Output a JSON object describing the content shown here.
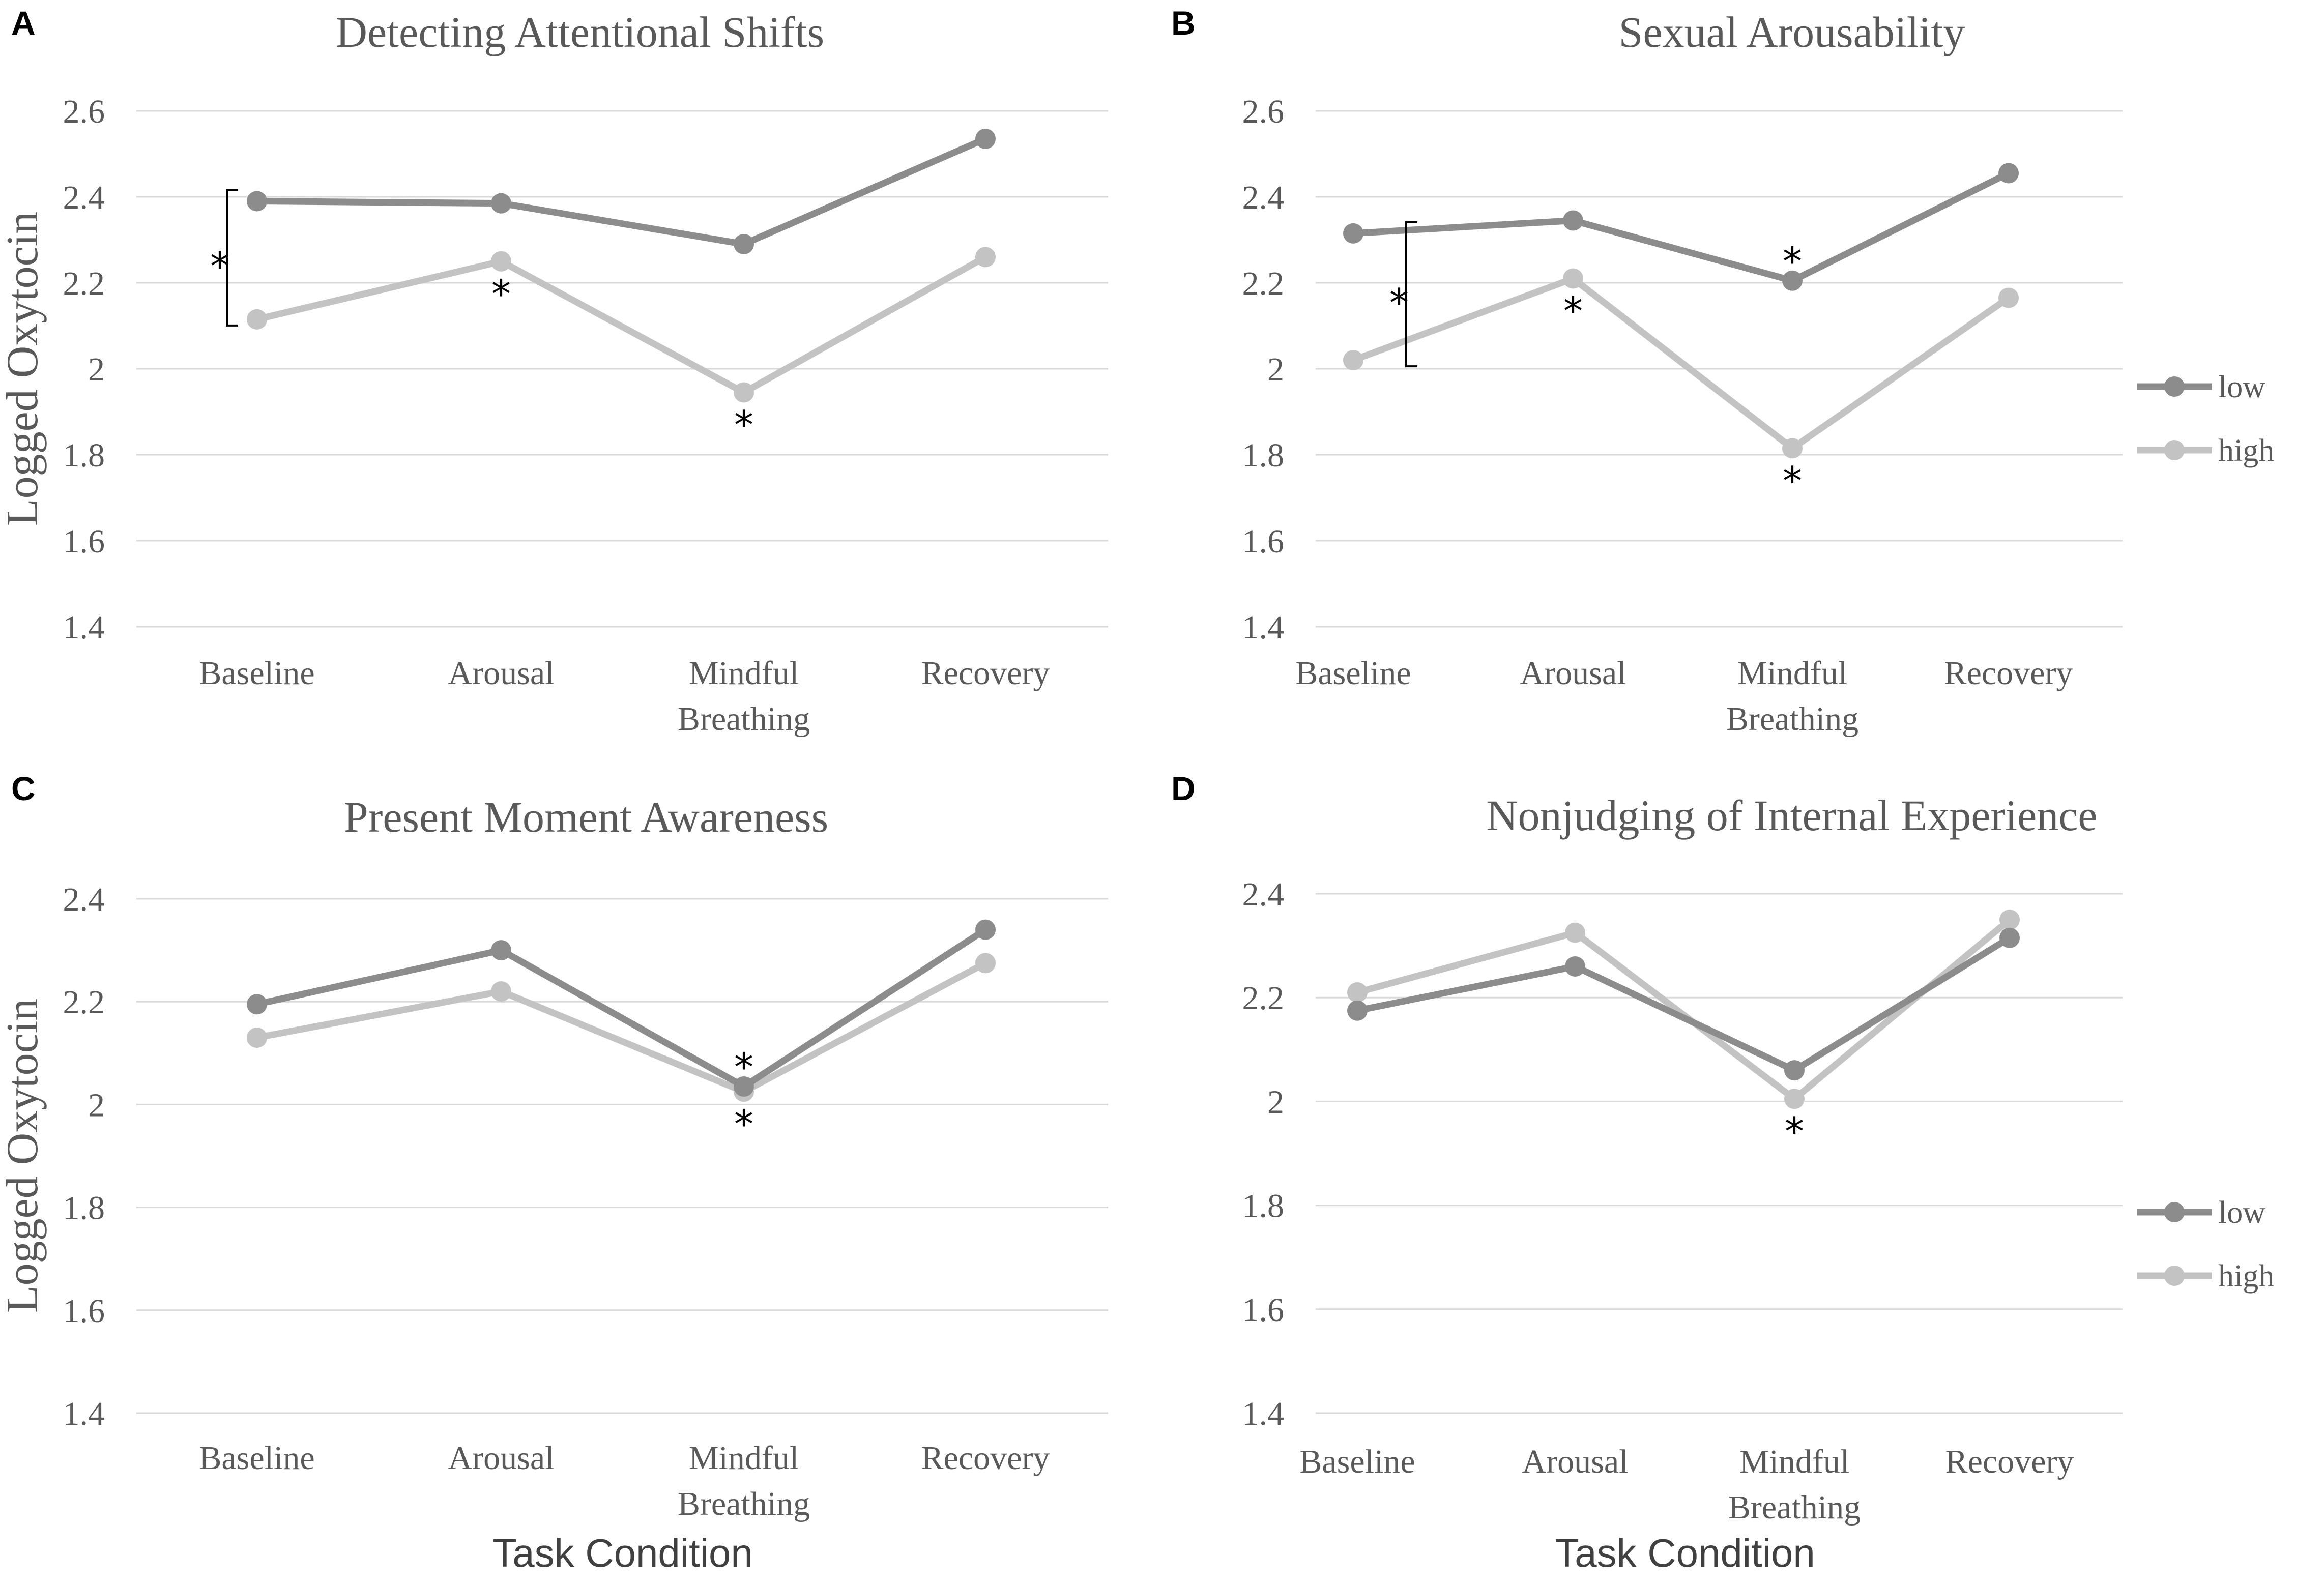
{
  "figure": {
    "x_axis_label": "Task Condition",
    "y_axis_label": "Logged Oxytocin"
  },
  "colors": {
    "low": "#8c8c8c",
    "high": "#c3c3c3",
    "grid": "#d9d9d9",
    "text": "#595959"
  },
  "chart_data": [
    {
      "panel": "A",
      "type": "line",
      "title": "Detecting Attentional Shifts",
      "xlabel": "",
      "ylabel": "Logged Oxytocin",
      "categories": [
        "Baseline",
        "Arousal",
        "Mindful Breathing",
        "Recovery"
      ],
      "y_ticks": [
        "1.4",
        "1.6",
        "1.8",
        "2",
        "2.2",
        "2.4",
        "2.6"
      ],
      "ylim": [
        1.4,
        2.6
      ],
      "series": [
        {
          "name": "low",
          "values": [
            2.39,
            2.385,
            2.29,
            2.535
          ]
        },
        {
          "name": "high",
          "values": [
            2.115,
            2.25,
            1.945,
            2.26
          ]
        }
      ],
      "annotations": [
        {
          "text": "*",
          "type": "bracket",
          "category": 0,
          "from": 2.39,
          "to": 2.115
        },
        {
          "text": "*",
          "series": "high",
          "category": 1,
          "position": "below"
        },
        {
          "text": "*",
          "series": "high",
          "category": 2,
          "position": "below"
        }
      ],
      "legend": false
    },
    {
      "panel": "B",
      "type": "line",
      "title": "Sexual Arousability",
      "xlabel": "",
      "ylabel": "",
      "categories": [
        "Baseline",
        "Arousal",
        "Mindful Breathing",
        "Recovery"
      ],
      "y_ticks": [
        "1.4",
        "1.6",
        "1.8",
        "2",
        "2.2",
        "2.4",
        "2.6"
      ],
      "ylim": [
        1.4,
        2.6
      ],
      "series": [
        {
          "name": "low",
          "values": [
            2.315,
            2.345,
            2.205,
            2.455
          ]
        },
        {
          "name": "high",
          "values": [
            2.02,
            2.21,
            1.815,
            2.165
          ]
        }
      ],
      "annotations": [
        {
          "text": "*",
          "type": "bracket",
          "category": 0,
          "from": 2.315,
          "to": 2.02
        },
        {
          "text": "*",
          "series": "high",
          "category": 1,
          "position": "below"
        },
        {
          "text": "*",
          "series": "low",
          "category": 2,
          "position": "above"
        },
        {
          "text": "*",
          "series": "high",
          "category": 2,
          "position": "below"
        }
      ],
      "legend": true
    },
    {
      "panel": "C",
      "type": "line",
      "title": "Present Moment Awareness",
      "xlabel": "Task Condition",
      "ylabel": "Logged Oxytocin",
      "categories": [
        "Baseline",
        "Arousal",
        "Mindful Breathing",
        "Recovery"
      ],
      "y_ticks": [
        "1.4",
        "1.6",
        "1.8",
        "2",
        "2.2",
        "2.4"
      ],
      "ylim": [
        1.4,
        2.4
      ],
      "series": [
        {
          "name": "low",
          "values": [
            2.195,
            2.3,
            2.035,
            2.34
          ]
        },
        {
          "name": "high",
          "values": [
            2.13,
            2.22,
            2.025,
            2.275
          ]
        }
      ],
      "annotations": [
        {
          "text": "*",
          "series": "low",
          "category": 2,
          "position": "above"
        },
        {
          "text": "*",
          "series": "high",
          "category": 2,
          "position": "below"
        }
      ],
      "legend": false
    },
    {
      "panel": "D",
      "type": "line",
      "title": "Nonjudging of Internal Experience",
      "xlabel": "Task Condition",
      "ylabel": "",
      "categories": [
        "Baseline",
        "Arousal",
        "Mindful Breathing",
        "Recovery"
      ],
      "y_ticks": [
        "1.4",
        "1.6",
        "1.8",
        "2",
        "2.2",
        "2.4"
      ],
      "ylim": [
        1.4,
        2.4
      ],
      "series": [
        {
          "name": "low",
          "values": [
            2.175,
            2.26,
            2.06,
            2.315
          ]
        },
        {
          "name": "high",
          "values": [
            2.21,
            2.325,
            2.005,
            2.35
          ]
        }
      ],
      "annotations": [
        {
          "text": "*",
          "series": "high",
          "category": 2,
          "position": "below"
        }
      ],
      "legend": true
    }
  ]
}
